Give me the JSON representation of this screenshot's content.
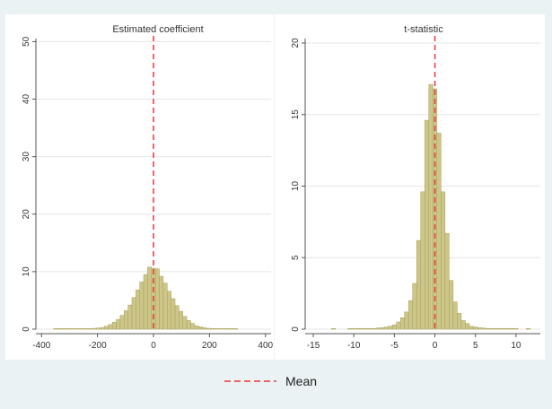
{
  "legend": {
    "label": "Mean",
    "position": "bottom-center"
  },
  "colors": {
    "background": "#eaf2f3",
    "panel": "#ffffff",
    "bar_fill": "#cdc68a",
    "bar_stroke": "#a79e52",
    "mean_line": "#e8373a",
    "grid": "#e6e6e6",
    "axis": "#555555"
  },
  "chart_data": [
    {
      "type": "bar",
      "title": "Estimated coefficient",
      "xlabel": "",
      "ylabel": "",
      "xlim": [
        -420,
        420
      ],
      "ylim": [
        0,
        51
      ],
      "xticks": [
        -400,
        -200,
        0,
        200,
        400
      ],
      "yticks": [
        0,
        10,
        20,
        30,
        40,
        50
      ],
      "grid": true,
      "bin_width": 14,
      "mean": 0,
      "bins": [
        {
          "x": -350,
          "v": 0.1
        },
        {
          "x": -336,
          "v": 0.1
        },
        {
          "x": -322,
          "v": 0.1
        },
        {
          "x": -308,
          "v": 0.1
        },
        {
          "x": -294,
          "v": 0.1
        },
        {
          "x": -280,
          "v": 0.1
        },
        {
          "x": -266,
          "v": 0.1
        },
        {
          "x": -252,
          "v": 0.1
        },
        {
          "x": -238,
          "v": 0.1
        },
        {
          "x": -224,
          "v": 0.1
        },
        {
          "x": -210,
          "v": 0.15
        },
        {
          "x": -196,
          "v": 0.2
        },
        {
          "x": -182,
          "v": 0.3
        },
        {
          "x": -168,
          "v": 0.5
        },
        {
          "x": -154,
          "v": 0.8
        },
        {
          "x": -140,
          "v": 1.2
        },
        {
          "x": -126,
          "v": 1.7
        },
        {
          "x": -112,
          "v": 2.4
        },
        {
          "x": -98,
          "v": 3.2
        },
        {
          "x": -84,
          "v": 4.2
        },
        {
          "x": -70,
          "v": 5.5
        },
        {
          "x": -56,
          "v": 6.8
        },
        {
          "x": -42,
          "v": 8.2
        },
        {
          "x": -28,
          "v": 9.5
        },
        {
          "x": -14,
          "v": 10.8
        },
        {
          "x": 0,
          "v": 10.6
        },
        {
          "x": 14,
          "v": 10.5
        },
        {
          "x": 28,
          "v": 9.2
        },
        {
          "x": 42,
          "v": 8.0
        },
        {
          "x": 56,
          "v": 6.6
        },
        {
          "x": 70,
          "v": 5.3
        },
        {
          "x": 84,
          "v": 4.1
        },
        {
          "x": 98,
          "v": 3.1
        },
        {
          "x": 112,
          "v": 2.2
        },
        {
          "x": 126,
          "v": 1.5
        },
        {
          "x": 140,
          "v": 1.0
        },
        {
          "x": 154,
          "v": 0.6
        },
        {
          "x": 168,
          "v": 0.4
        },
        {
          "x": 182,
          "v": 0.25
        },
        {
          "x": 196,
          "v": 0.15
        },
        {
          "x": 210,
          "v": 0.1
        },
        {
          "x": 224,
          "v": 0.1
        },
        {
          "x": 238,
          "v": 0.1
        },
        {
          "x": 252,
          "v": 0.1
        },
        {
          "x": 266,
          "v": 0.1
        },
        {
          "x": 280,
          "v": 0.1
        },
        {
          "x": 294,
          "v": 0.1
        }
      ]
    },
    {
      "type": "bar",
      "title": "t-statistic",
      "xlabel": "",
      "ylabel": "",
      "xlim": [
        -16,
        13
      ],
      "ylim": [
        0,
        20.5
      ],
      "xticks": [
        -15,
        -10,
        -5,
        0,
        5,
        10
      ],
      "yticks": [
        0,
        5,
        10,
        15,
        20
      ],
      "grid": true,
      "bin_width": 0.5,
      "mean": 0,
      "bins": [
        {
          "x": -12.5,
          "v": 0.05
        },
        {
          "x": -10.5,
          "v": 0.05
        },
        {
          "x": -10,
          "v": 0.05
        },
        {
          "x": -9.5,
          "v": 0.05
        },
        {
          "x": -9,
          "v": 0.05
        },
        {
          "x": -8.5,
          "v": 0.05
        },
        {
          "x": -8,
          "v": 0.05
        },
        {
          "x": -7.5,
          "v": 0.05
        },
        {
          "x": -7,
          "v": 0.08
        },
        {
          "x": -6.5,
          "v": 0.1
        },
        {
          "x": -6,
          "v": 0.15
        },
        {
          "x": -5.5,
          "v": 0.2
        },
        {
          "x": -5,
          "v": 0.3
        },
        {
          "x": -4.5,
          "v": 0.5
        },
        {
          "x": -4,
          "v": 0.8
        },
        {
          "x": -3.5,
          "v": 1.2
        },
        {
          "x": -3,
          "v": 2.0
        },
        {
          "x": -2.5,
          "v": 3.2
        },
        {
          "x": -2,
          "v": 6.2
        },
        {
          "x": -1.5,
          "v": 9.6
        },
        {
          "x": -1,
          "v": 14.6
        },
        {
          "x": -0.5,
          "v": 17.1
        },
        {
          "x": 0,
          "v": 16.8
        },
        {
          "x": 0.5,
          "v": 13.7
        },
        {
          "x": 1,
          "v": 9.6
        },
        {
          "x": 1.5,
          "v": 6.7
        },
        {
          "x": 2,
          "v": 3.4
        },
        {
          "x": 2.5,
          "v": 1.9
        },
        {
          "x": 3,
          "v": 1.1
        },
        {
          "x": 3.5,
          "v": 0.6
        },
        {
          "x": 4,
          "v": 0.4
        },
        {
          "x": 4.5,
          "v": 0.2
        },
        {
          "x": 5,
          "v": 0.15
        },
        {
          "x": 5.5,
          "v": 0.1
        },
        {
          "x": 6,
          "v": 0.08
        },
        {
          "x": 6.5,
          "v": 0.05
        },
        {
          "x": 7,
          "v": 0.05
        },
        {
          "x": 7.5,
          "v": 0.05
        },
        {
          "x": 8,
          "v": 0.05
        },
        {
          "x": 8.5,
          "v": 0.05
        },
        {
          "x": 9,
          "v": 0.05
        },
        {
          "x": 9.5,
          "v": 0.05
        },
        {
          "x": 10,
          "v": 0.05
        },
        {
          "x": 11.5,
          "v": 0.05
        }
      ]
    }
  ]
}
